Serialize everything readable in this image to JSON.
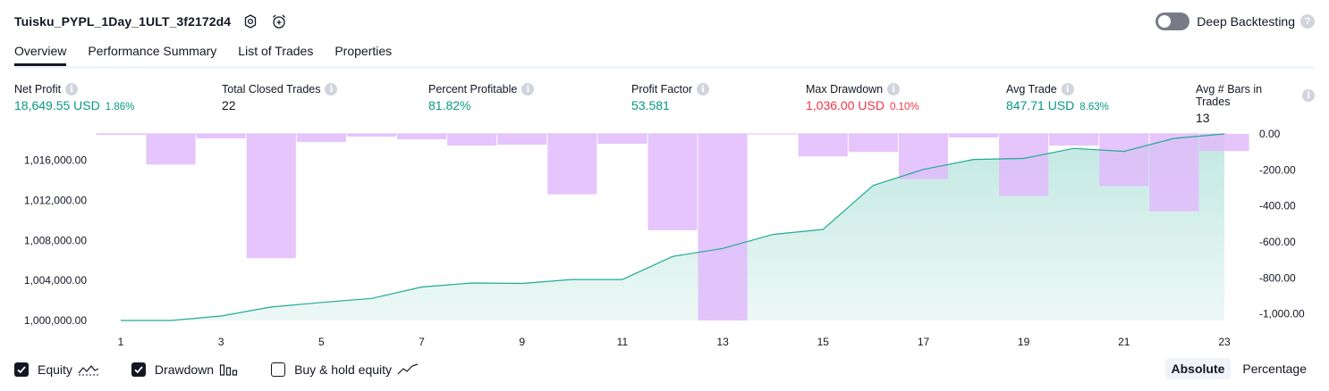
{
  "header": {
    "title": "Tuisku_PYPL_1Day_1ULT_3f2172d4",
    "deep_backtesting_label": "Deep Backtesting",
    "deep_backtesting_enabled": false
  },
  "tabs": [
    {
      "label": "Overview",
      "active": true
    },
    {
      "label": "Performance Summary",
      "active": false
    },
    {
      "label": "List of Trades",
      "active": false
    },
    {
      "label": "Properties",
      "active": false
    }
  ],
  "metrics": [
    {
      "label": "Net Profit",
      "value": "18,649.55 USD",
      "pct": "1.86%",
      "color": "#089981"
    },
    {
      "label": "Total Closed Trades",
      "value": "22",
      "pct": "",
      "color": "#131722"
    },
    {
      "label": "Percent Profitable",
      "value": "81.82%",
      "pct": "",
      "color": "#089981"
    },
    {
      "label": "Profit Factor",
      "value": "53.581",
      "pct": "",
      "color": "#089981"
    },
    {
      "label": "Max Drawdown",
      "value": "1,036.00 USD",
      "pct": "0.10%",
      "color": "#f23645"
    },
    {
      "label": "Avg Trade",
      "value": "847.71 USD",
      "pct": "8.63%",
      "color": "#089981"
    },
    {
      "label": "Avg # Bars in Trades",
      "value": "13",
      "pct": "",
      "color": "#131722"
    }
  ],
  "chart_data": {
    "type": "line",
    "x_ticks": [
      "1",
      "3",
      "5",
      "7",
      "9",
      "11",
      "13",
      "15",
      "17",
      "19",
      "21",
      "23"
    ],
    "left_axis": {
      "ticks": [
        "1,000,000.00",
        "1,004,000.00",
        "1,008,000.00",
        "1,012,000.00",
        "1,016,000.00"
      ],
      "range": [
        1000000,
        1018649.55
      ]
    },
    "right_axis": {
      "ticks": [
        "0.00",
        "-200.00",
        "-400.00",
        "-600.00",
        "-800.00",
        "-1,000.00"
      ],
      "range": [
        -1036,
        0
      ]
    },
    "series": [
      {
        "name": "Equity",
        "kind": "area",
        "color": "#22ab94",
        "x": [
          1,
          2,
          3,
          4,
          5,
          6,
          7,
          8,
          9,
          10,
          11,
          12,
          13,
          14,
          15,
          16,
          17,
          18,
          19,
          20,
          21,
          22,
          23
        ],
        "values": [
          1000000,
          1000000,
          1000450,
          1001350,
          1001800,
          1002200,
          1003350,
          1003750,
          1003700,
          1004100,
          1004100,
          1006400,
          1007200,
          1008600,
          1009100,
          1013500,
          1015100,
          1016100,
          1016200,
          1017200,
          1016900,
          1018200,
          1018649.55
        ]
      },
      {
        "name": "Drawdown",
        "kind": "bar",
        "color": "#e1bbfc",
        "x": [
          1,
          2,
          3,
          4,
          5,
          6,
          7,
          8,
          9,
          10,
          11,
          12,
          13,
          14,
          15,
          16,
          17,
          18,
          19,
          20,
          21,
          22,
          23
        ],
        "values": [
          -5,
          -170,
          -25,
          -690,
          -45,
          -15,
          -30,
          -65,
          -60,
          -335,
          -55,
          -535,
          -1036,
          0,
          -125,
          -100,
          -250,
          -20,
          -345,
          -65,
          -290,
          -430,
          -95
        ]
      }
    ]
  },
  "legend": {
    "equity_label": "Equity",
    "equity_checked": true,
    "drawdown_label": "Drawdown",
    "drawdown_checked": true,
    "buy_hold_label": "Buy & hold equity",
    "buy_hold_checked": false
  },
  "mode": {
    "absolute_label": "Absolute",
    "percentage_label": "Percentage",
    "active": "absolute"
  }
}
